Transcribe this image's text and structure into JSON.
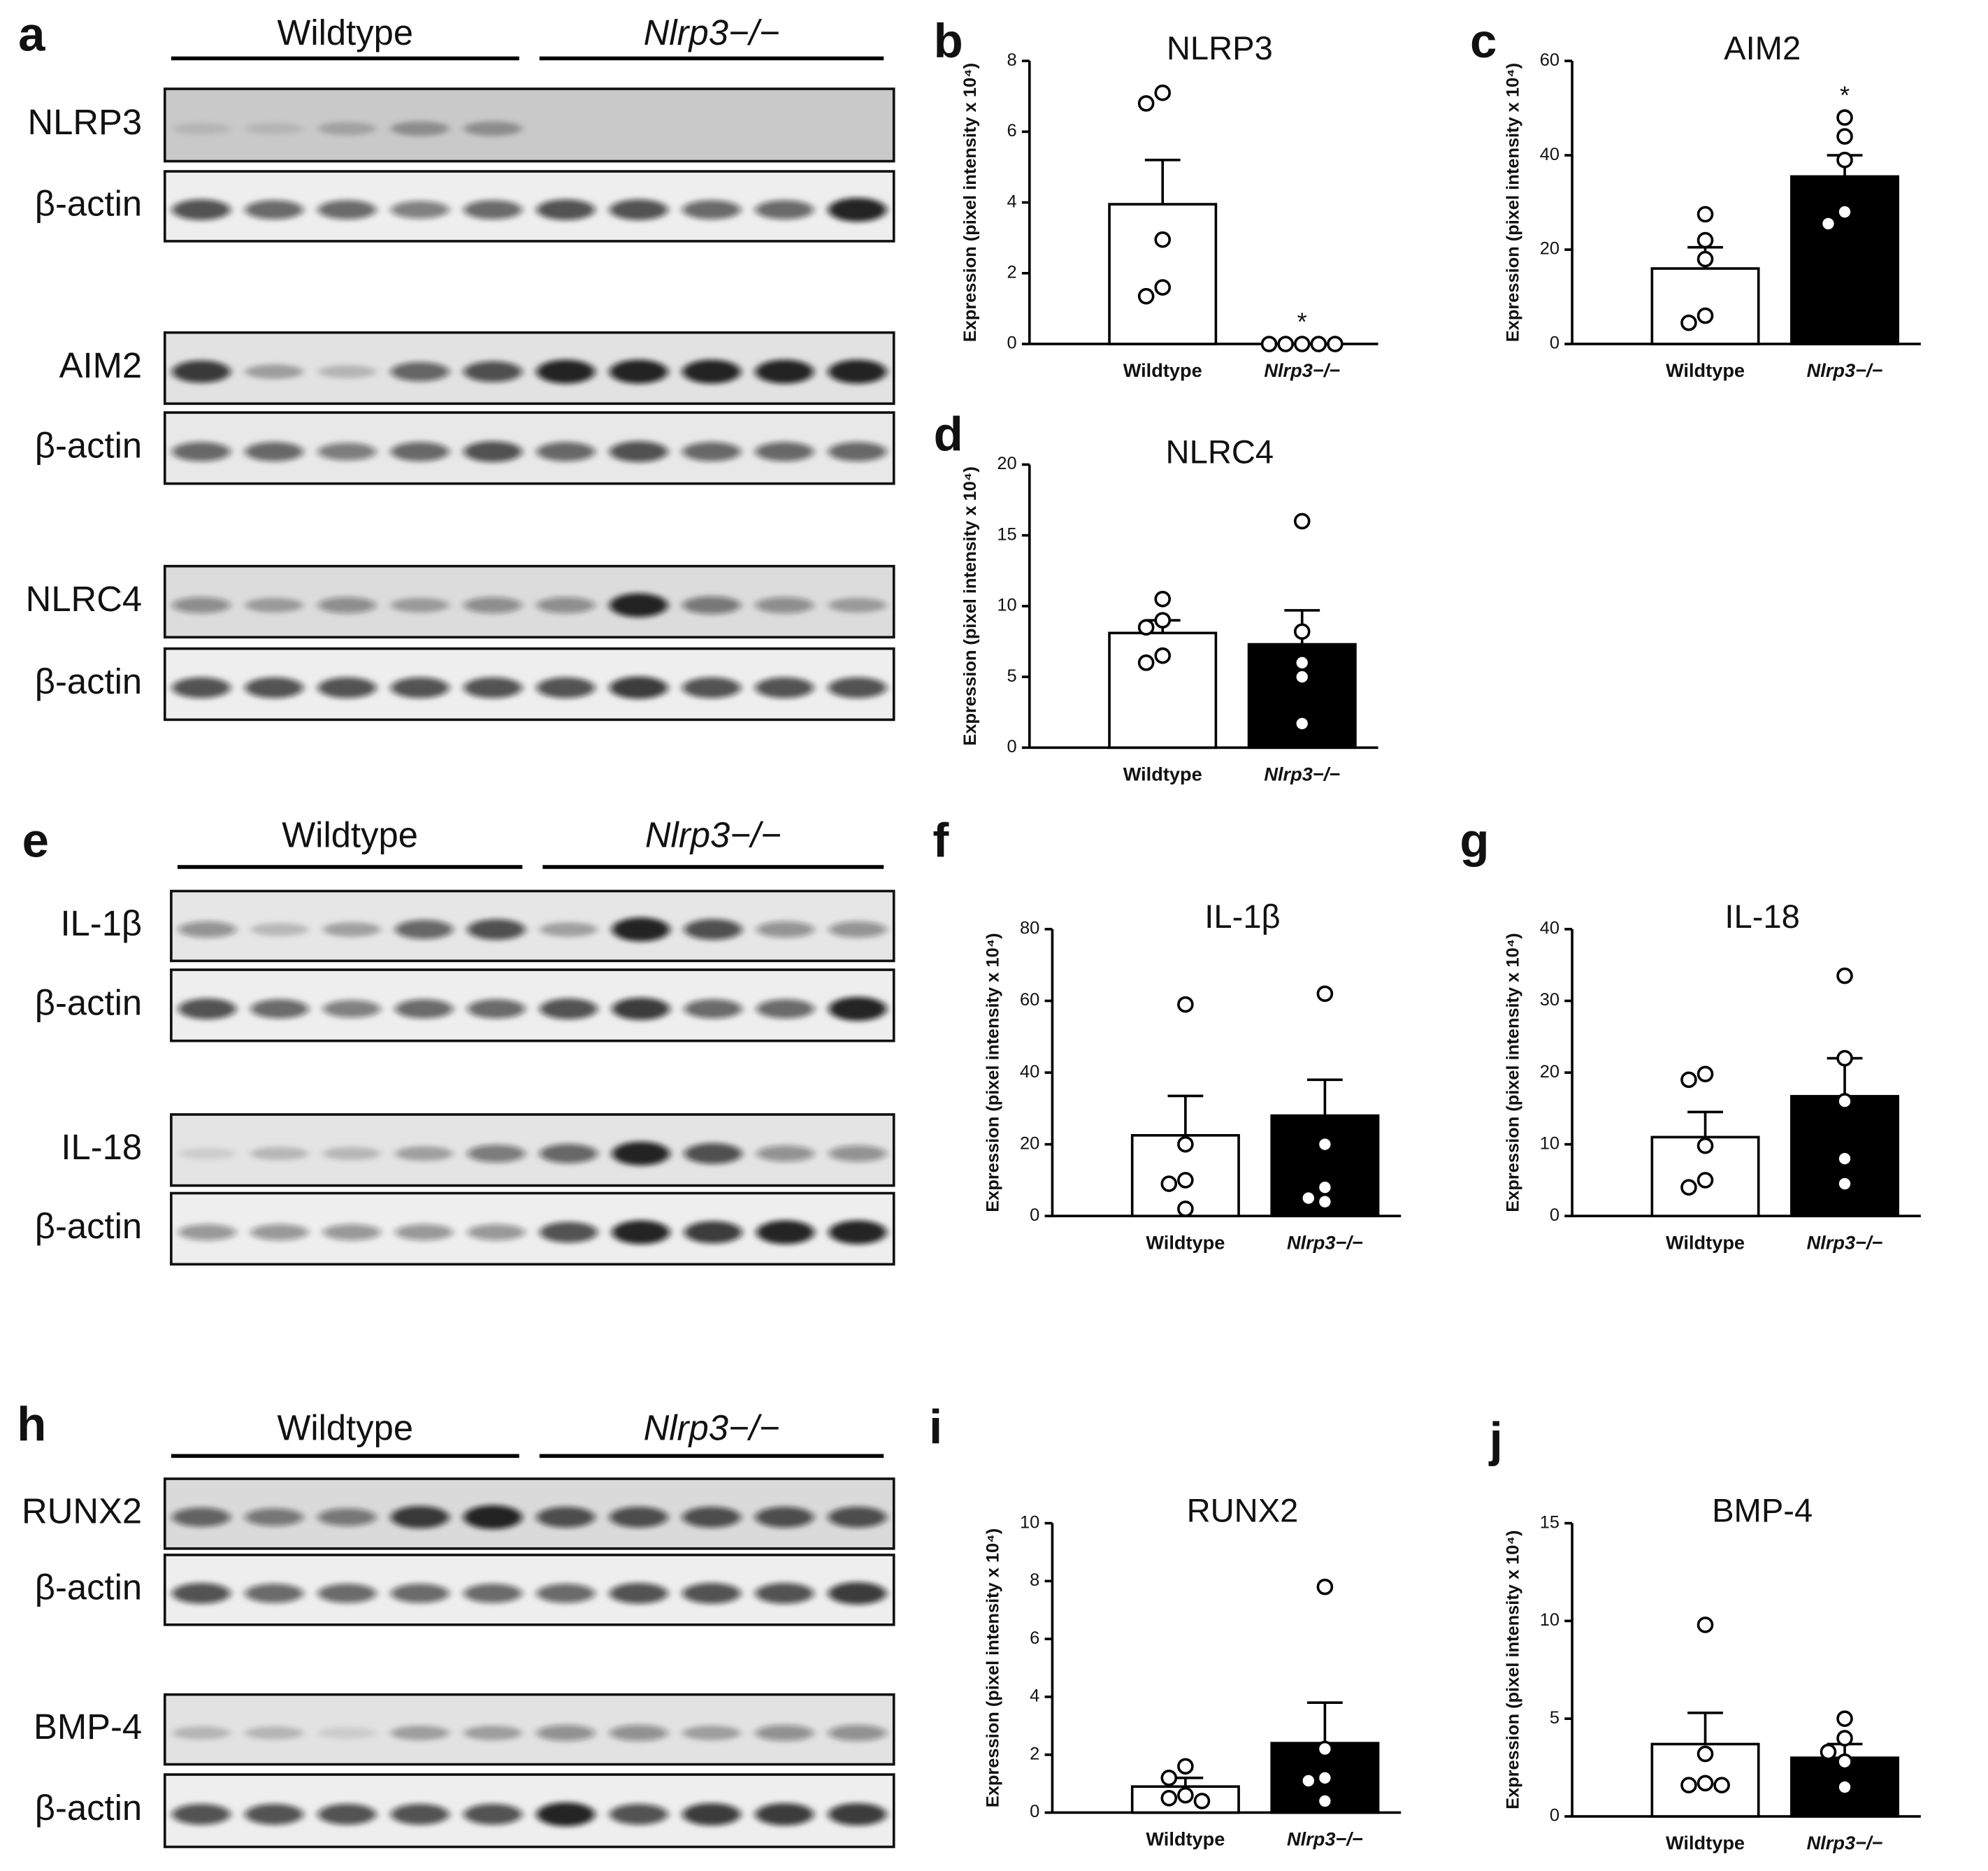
{
  "blots": [
    {
      "panel": "a",
      "groups": [
        "Wildtype",
        "Nlrp3−/−"
      ],
      "rows": [
        "NLRP3",
        "β-actin",
        "AIM2",
        "β-actin",
        "NLRC4",
        "β-actin"
      ]
    },
    {
      "panel": "e",
      "groups": [
        "Wildtype",
        "Nlrp3−/−"
      ],
      "rows": [
        "IL-1β",
        "β-actin",
        "IL-18",
        "β-actin"
      ]
    },
    {
      "panel": "h",
      "groups": [
        "Wildtype",
        "Nlrp3−/−"
      ],
      "rows": [
        "RUNX2",
        "β-actin",
        "BMP-4",
        "β-actin"
      ]
    }
  ],
  "chart_data": [
    {
      "type": "bar",
      "panel": "b",
      "title": "NLRP3",
      "ylabel": "Expression (pixel intensity x 10⁴)",
      "categories": [
        "Wildtype",
        "Nlrp3−/−"
      ],
      "values": [
        3.95,
        0
      ],
      "errors": [
        1.25,
        0
      ],
      "points": [
        [
          7.1,
          6.8,
          2.95,
          1.6,
          1.35
        ],
        [
          0,
          0,
          0,
          0,
          0
        ]
      ],
      "markers": [
        null,
        "*"
      ],
      "bar_colors": [
        "#ffffff",
        "#000000"
      ],
      "ylim": [
        0,
        8
      ],
      "yticks": [
        0,
        2,
        4,
        6,
        8
      ]
    },
    {
      "type": "bar",
      "panel": "c",
      "title": "AIM2",
      "ylabel": "Expression (pixel intensity x 10⁴)",
      "categories": [
        "Wildtype",
        "Nlrp3−/−"
      ],
      "values": [
        16,
        35.5
      ],
      "errors": [
        4.5,
        4.5
      ],
      "points": [
        [
          27.5,
          22,
          18,
          6,
          4.5
        ],
        [
          48,
          44,
          39,
          28,
          25.5
        ]
      ],
      "markers": [
        null,
        "*"
      ],
      "bar_colors": [
        "#ffffff",
        "#000000"
      ],
      "ylim": [
        0,
        60
      ],
      "yticks": [
        0,
        20,
        40,
        60
      ]
    },
    {
      "type": "bar",
      "panel": "d",
      "title": "NLRC4",
      "ylabel": "Expression (pixel intensity x 10⁴)",
      "categories": [
        "Wildtype",
        "Nlrp3−/−"
      ],
      "values": [
        8.1,
        7.3
      ],
      "errors": [
        0.9,
        2.4
      ],
      "points": [
        [
          10.5,
          9,
          8.5,
          6.5,
          6
        ],
        [
          16,
          8.2,
          6,
          5,
          1.7
        ]
      ],
      "bar_colors": [
        "#ffffff",
        "#000000"
      ],
      "ylim": [
        0,
        20
      ],
      "yticks": [
        0,
        5,
        10,
        15,
        20
      ]
    },
    {
      "type": "bar",
      "panel": "f",
      "title": "IL-1β",
      "ylabel": "Expression (pixel intensity x 10⁴)",
      "categories": [
        "Wildtype",
        "Nlrp3−/−"
      ],
      "values": [
        22.5,
        28
      ],
      "errors": [
        11,
        10
      ],
      "points": [
        [
          59,
          20,
          10,
          9,
          2
        ],
        [
          62,
          20,
          8,
          5,
          4
        ]
      ],
      "bar_colors": [
        "#ffffff",
        "#000000"
      ],
      "ylim": [
        0,
        80
      ],
      "yticks": [
        0,
        20,
        40,
        60,
        80
      ]
    },
    {
      "type": "bar",
      "panel": "g",
      "title": "IL-18",
      "ylabel": "Expression (pixel intensity x 10⁴)",
      "categories": [
        "Wildtype",
        "Nlrp3−/−"
      ],
      "values": [
        11,
        16.7
      ],
      "errors": [
        3.5,
        5.3
      ],
      "points": [
        [
          19.8,
          19,
          9.8,
          5,
          4
        ],
        [
          33.5,
          22,
          16,
          8,
          4.5
        ]
      ],
      "bar_colors": [
        "#ffffff",
        "#000000"
      ],
      "ylim": [
        0,
        40
      ],
      "yticks": [
        0,
        10,
        20,
        30,
        40
      ]
    },
    {
      "type": "bar",
      "panel": "i",
      "title": "RUNX2",
      "ylabel": "Expression (pixel intensity x 10⁴)",
      "categories": [
        "Wildtype",
        "Nlrp3−/−"
      ],
      "values": [
        0.9,
        2.4
      ],
      "errors": [
        0.3,
        1.4
      ],
      "points": [
        [
          1.6,
          1.2,
          0.6,
          0.5,
          0.4
        ],
        [
          7.8,
          2.2,
          1.2,
          1.1,
          0.4
        ]
      ],
      "bar_colors": [
        "#ffffff",
        "#000000"
      ],
      "ylim": [
        0,
        10
      ],
      "yticks": [
        0,
        2,
        4,
        6,
        8,
        10
      ]
    },
    {
      "type": "bar",
      "panel": "j",
      "title": "BMP-4",
      "ylabel": "Expression (pixel intensity x 10⁴)",
      "categories": [
        "Wildtype",
        "Nlrp3−/−"
      ],
      "values": [
        3.7,
        3
      ],
      "errors": [
        1.6,
        0.7
      ],
      "points": [
        [
          9.8,
          3.2,
          1.7,
          1.6,
          1.6
        ],
        [
          5,
          4,
          3.3,
          2.8,
          1.5
        ]
      ],
      "bar_colors": [
        "#ffffff",
        "#000000"
      ],
      "ylim": [
        0,
        15
      ],
      "yticks": [
        0,
        5,
        10,
        15
      ]
    }
  ]
}
